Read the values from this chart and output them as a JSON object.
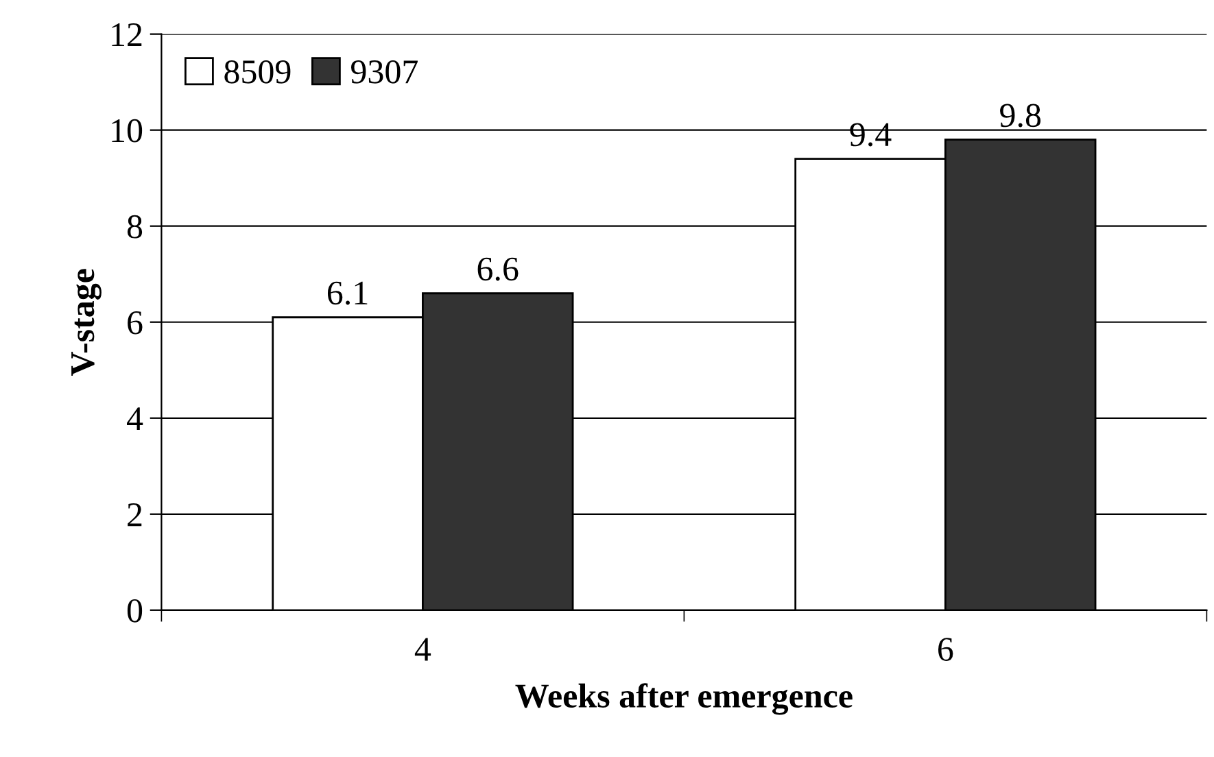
{
  "chart_data": {
    "type": "bar",
    "xlabel": "Weeks after emergence",
    "ylabel": "V-stage",
    "categories": [
      "4",
      "6"
    ],
    "series": [
      {
        "name": "8509",
        "color": "#ffffff",
        "values": [
          6.1,
          9.4
        ]
      },
      {
        "name": "9307",
        "color": "#333333",
        "values": [
          6.6,
          9.8
        ]
      }
    ],
    "ylim": [
      0,
      12
    ],
    "yticks": [
      0,
      2,
      4,
      6,
      8,
      10,
      12
    ],
    "grid": "y",
    "legend": "top left",
    "data_labels": true
  }
}
